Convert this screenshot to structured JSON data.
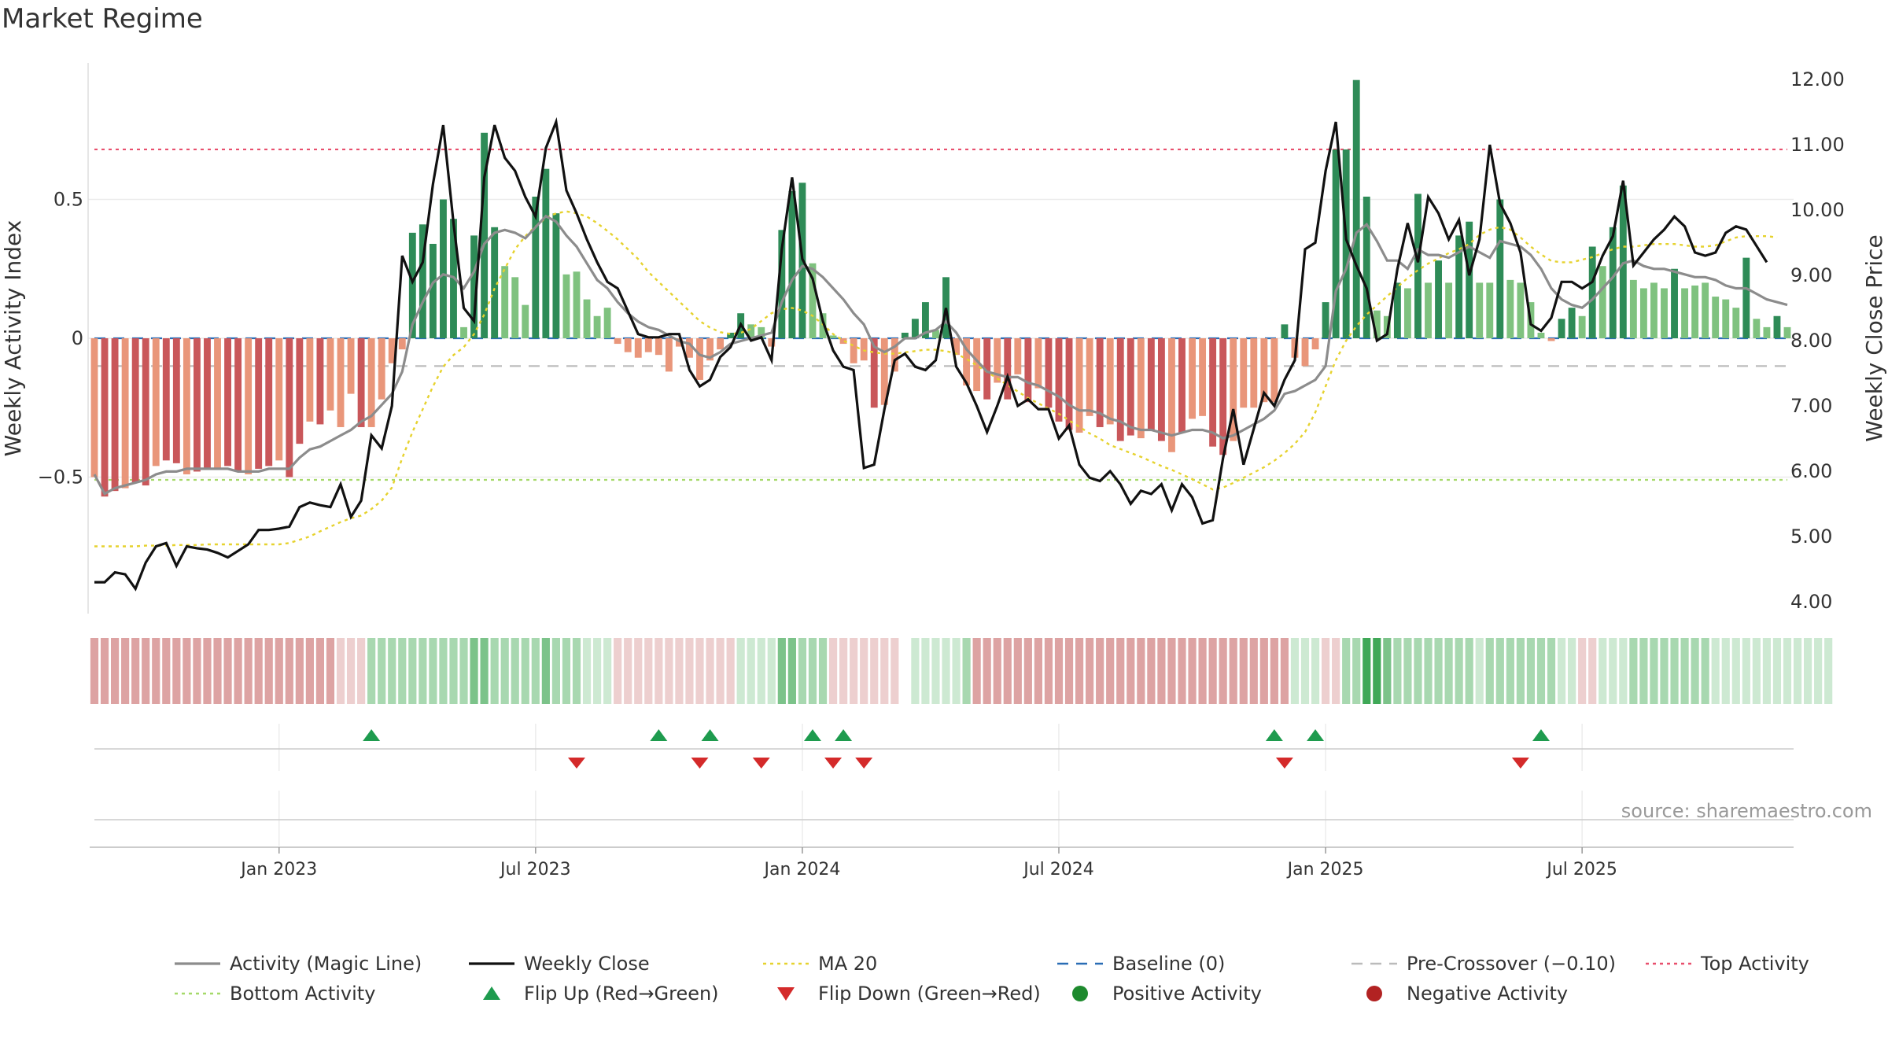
{
  "title": "Market Regime",
  "source": "source: sharemaestro.com",
  "chart_data": {
    "type": "bar",
    "left_axis": {
      "label": "Weekly Activity Index",
      "ticks": [
        0.5,
        0,
        -0.5
      ],
      "tick_labels": [
        "0.5",
        "0",
        "−0.5"
      ],
      "range": [
        -0.98,
        0.98
      ]
    },
    "right_axis": {
      "label": "Weekly Close Price",
      "ticks": [
        12,
        11,
        10,
        9,
        8,
        7,
        6,
        5,
        4
      ],
      "tick_labels": [
        "12.00",
        "11.00",
        "10.00",
        "9.00",
        "8.00",
        "7.00",
        "6.00",
        "5.00",
        "4.00"
      ],
      "range": [
        3.6,
        12.4
      ]
    },
    "x_axis": {
      "tick_labels": [
        "Jan 2023",
        "Jul 2023",
        "Jan 2024",
        "Jul 2024",
        "Jan 2025",
        "Jul 2025"
      ],
      "tick_weeks": [
        18,
        43,
        69,
        94,
        120,
        145
      ]
    },
    "reference_lines": {
      "top_activity": 0.68,
      "bottom_activity": -0.51,
      "pre_crossover": -0.1,
      "baseline": 0
    },
    "activity": [
      -0.5,
      -0.57,
      -0.55,
      -0.54,
      -0.52,
      -0.53,
      -0.46,
      -0.44,
      -0.45,
      -0.49,
      -0.48,
      -0.47,
      -0.47,
      -0.46,
      -0.48,
      -0.49,
      -0.47,
      -0.46,
      -0.44,
      -0.5,
      -0.38,
      -0.3,
      -0.31,
      -0.26,
      -0.32,
      -0.2,
      -0.32,
      -0.32,
      -0.22,
      -0.09,
      -0.04,
      0.38,
      0.41,
      0.34,
      0.5,
      0.43,
      0.04,
      0.37,
      0.74,
      0.4,
      0.26,
      0.22,
      0.12,
      0.51,
      0.61,
      0.45,
      0.23,
      0.24,
      0.14,
      0.08,
      0.11,
      -0.02,
      -0.05,
      -0.07,
      -0.05,
      -0.06,
      -0.12,
      -0.03,
      -0.07,
      -0.15,
      -0.08,
      -0.04,
      0.02,
      0.09,
      0.05,
      0.04,
      -0.03,
      0.39,
      0.53,
      0.56,
      0.27,
      0.09,
      0.01,
      -0.02,
      -0.09,
      -0.08,
      -0.25,
      -0.24,
      -0.12,
      0.02,
      0.07,
      0.13,
      0.03,
      0.22,
      -0.06,
      -0.17,
      -0.19,
      -0.22,
      -0.16,
      -0.22,
      -0.13,
      -0.23,
      -0.18,
      -0.25,
      -0.3,
      -0.33,
      -0.34,
      -0.28,
      -0.32,
      -0.31,
      -0.37,
      -0.35,
      -0.36,
      -0.33,
      -0.37,
      -0.41,
      -0.34,
      -0.29,
      -0.28,
      -0.39,
      -0.42,
      -0.37,
      -0.25,
      -0.25,
      -0.23,
      -0.23,
      0.05,
      -0.07,
      -0.1,
      -0.04,
      0.13,
      0.68,
      0.68,
      0.93,
      0.51,
      0.1,
      0.08,
      0.2,
      0.18,
      0.52,
      0.2,
      0.28,
      0.2,
      0.37,
      0.42,
      0.2,
      0.2,
      0.5,
      0.21,
      0.2,
      0.13,
      0.02,
      -0.01,
      0.07,
      0.11,
      0.08,
      0.33,
      0.26,
      0.4,
      0.55,
      0.21,
      0.18,
      0.2,
      0.18,
      0.25,
      0.18,
      0.19,
      0.2,
      0.15,
      0.14,
      0.11,
      0.29,
      0.07,
      0.04,
      0.08,
      0.04
    ],
    "magic_line": [
      -0.49,
      -0.56,
      -0.54,
      -0.53,
      -0.52,
      -0.51,
      -0.49,
      -0.48,
      -0.48,
      -0.47,
      -0.47,
      -0.47,
      -0.47,
      -0.47,
      -0.48,
      -0.48,
      -0.48,
      -0.47,
      -0.47,
      -0.47,
      -0.43,
      -0.4,
      -0.39,
      -0.37,
      -0.35,
      -0.33,
      -0.3,
      -0.28,
      -0.24,
      -0.2,
      -0.12,
      0.05,
      0.13,
      0.2,
      0.23,
      0.22,
      0.18,
      0.24,
      0.34,
      0.38,
      0.39,
      0.38,
      0.36,
      0.4,
      0.44,
      0.42,
      0.37,
      0.33,
      0.27,
      0.21,
      0.18,
      0.13,
      0.09,
      0.06,
      0.04,
      0.03,
      0.01,
      -0.01,
      -0.02,
      -0.06,
      -0.07,
      -0.05,
      -0.02,
      -0.01,
      0.0,
      0.01,
      0.02,
      0.13,
      0.21,
      0.26,
      0.25,
      0.22,
      0.18,
      0.14,
      0.09,
      0.05,
      -0.03,
      -0.05,
      -0.03,
      0.0,
      0.0,
      0.02,
      0.03,
      0.06,
      0.02,
      -0.04,
      -0.08,
      -0.12,
      -0.13,
      -0.14,
      -0.14,
      -0.16,
      -0.17,
      -0.19,
      -0.21,
      -0.24,
      -0.26,
      -0.26,
      -0.27,
      -0.29,
      -0.3,
      -0.32,
      -0.33,
      -0.33,
      -0.34,
      -0.35,
      -0.34,
      -0.33,
      -0.33,
      -0.34,
      -0.36,
      -0.35,
      -0.33,
      -0.31,
      -0.29,
      -0.26,
      -0.2,
      -0.19,
      -0.17,
      -0.15,
      -0.1,
      0.17,
      0.25,
      0.38,
      0.41,
      0.35,
      0.28,
      0.28,
      0.25,
      0.32,
      0.3,
      0.3,
      0.29,
      0.31,
      0.33,
      0.31,
      0.29,
      0.35,
      0.34,
      0.33,
      0.3,
      0.25,
      0.18,
      0.14,
      0.12,
      0.11,
      0.14,
      0.18,
      0.22,
      0.27,
      0.28,
      0.26,
      0.25,
      0.25,
      0.24,
      0.23,
      0.22,
      0.22,
      0.21,
      0.19,
      0.18,
      0.18,
      0.16,
      0.14,
      0.13,
      0.12
    ],
    "weekly_close": [
      4.3,
      4.3,
      4.45,
      4.42,
      4.2,
      4.6,
      4.85,
      4.9,
      4.55,
      4.85,
      4.82,
      4.8,
      4.75,
      4.68,
      4.78,
      4.88,
      5.1,
      5.1,
      5.12,
      5.15,
      5.45,
      5.52,
      5.48,
      5.45,
      5.8,
      5.3,
      5.55,
      6.55,
      6.35,
      7.0,
      9.3,
      8.9,
      9.2,
      10.4,
      11.3,
      9.8,
      8.5,
      8.3,
      10.5,
      11.3,
      10.8,
      10.6,
      10.2,
      9.9,
      10.95,
      11.35,
      10.3,
      9.95,
      9.55,
      9.2,
      8.9,
      8.8,
      8.45,
      8.1,
      8.05,
      8.05,
      8.1,
      8.1,
      7.55,
      7.3,
      7.4,
      7.75,
      7.9,
      8.25,
      8.0,
      8.05,
      7.7,
      9.4,
      10.5,
      9.25,
      8.95,
      8.3,
      7.85,
      7.6,
      7.55,
      6.05,
      6.1,
      6.95,
      7.7,
      7.8,
      7.6,
      7.55,
      7.7,
      8.5,
      7.6,
      7.35,
      7.0,
      6.6,
      7.0,
      7.45,
      7.0,
      7.1,
      6.95,
      6.95,
      6.5,
      6.7,
      6.1,
      5.9,
      5.85,
      6.0,
      5.8,
      5.5,
      5.7,
      5.65,
      5.8,
      5.4,
      5.8,
      5.6,
      5.2,
      5.25,
      6.2,
      6.95,
      6.1,
      6.65,
      7.2,
      7.0,
      7.4,
      7.7,
      9.4,
      9.5,
      10.6,
      11.35,
      9.55,
      9.15,
      8.8,
      8.0,
      8.1,
      9.1,
      9.8,
      9.2,
      10.2,
      9.95,
      9.55,
      9.85,
      9.0,
      9.55,
      11.0,
      10.1,
      9.8,
      9.35,
      8.25,
      8.15,
      8.35,
      8.9,
      8.9,
      8.8,
      8.9,
      9.3,
      9.6,
      10.45,
      9.15,
      9.35,
      9.55,
      9.7,
      9.9,
      9.75,
      9.35,
      9.3,
      9.35,
      9.65,
      9.75,
      9.7,
      9.45,
      9.2
    ],
    "ma20": [
      4.85,
      4.85,
      4.85,
      4.85,
      4.85,
      4.86,
      4.86,
      4.86,
      4.87,
      4.87,
      4.87,
      4.88,
      4.88,
      4.88,
      4.88,
      4.88,
      4.88,
      4.88,
      4.88,
      4.9,
      4.95,
      5.0,
      5.08,
      5.15,
      5.22,
      5.28,
      5.32,
      5.42,
      5.55,
      5.75,
      6.2,
      6.6,
      6.95,
      7.3,
      7.6,
      7.78,
      7.9,
      8.1,
      8.4,
      8.8,
      9.1,
      9.4,
      9.6,
      9.75,
      9.88,
      9.95,
      9.98,
      9.95,
      9.9,
      9.8,
      9.68,
      9.55,
      9.4,
      9.25,
      9.05,
      8.9,
      8.75,
      8.6,
      8.45,
      8.3,
      8.2,
      8.13,
      8.1,
      8.12,
      8.18,
      8.3,
      8.42,
      8.48,
      8.5,
      8.46,
      8.38,
      8.25,
      8.1,
      8.0,
      7.92,
      7.85,
      7.82,
      7.8,
      7.8,
      7.82,
      7.84,
      7.86,
      7.86,
      7.84,
      7.8,
      7.72,
      7.62,
      7.52,
      7.42,
      7.32,
      7.22,
      7.12,
      7.04,
      6.96,
      6.88,
      6.78,
      6.68,
      6.58,
      6.5,
      6.4,
      6.34,
      6.28,
      6.22,
      6.15,
      6.08,
      6.02,
      5.95,
      5.88,
      5.8,
      5.72,
      5.75,
      5.82,
      5.9,
      5.98,
      6.06,
      6.16,
      6.28,
      6.42,
      6.6,
      6.9,
      7.3,
      7.7,
      8.0,
      8.22,
      8.4,
      8.54,
      8.68,
      8.82,
      8.96,
      9.08,
      9.18,
      9.26,
      9.34,
      9.4,
      9.48,
      9.62,
      9.7,
      9.74,
      9.7,
      9.58,
      9.44,
      9.32,
      9.22,
      9.2,
      9.2,
      9.24,
      9.28,
      9.34,
      9.4,
      9.44,
      9.44,
      9.46,
      9.48,
      9.48,
      9.48,
      9.46,
      9.44,
      9.44,
      9.46,
      9.52,
      9.58,
      9.6,
      9.6,
      9.6,
      9.58
    ],
    "regime_strip": [
      -2,
      -2,
      -2,
      -2,
      -2,
      -2,
      -2,
      -2,
      -2,
      -2,
      -2,
      -2,
      -2,
      -2,
      -2,
      -2,
      -2,
      -2,
      -2,
      -2,
      -2,
      -2,
      -2,
      -2,
      -1,
      -1,
      -1,
      2,
      2,
      2,
      2,
      2,
      2,
      2,
      2,
      2,
      2,
      3,
      3,
      2,
      2,
      2,
      2,
      2,
      3,
      2,
      2,
      2,
      1,
      1,
      1,
      -1,
      -1,
      -1,
      -1,
      -1,
      -1,
      -1,
      -1,
      -1,
      -1,
      -1,
      -1,
      1,
      1,
      1,
      1,
      3,
      3,
      2,
      2,
      2,
      -1,
      -1,
      -1,
      -1,
      -1,
      -1,
      -1,
      null,
      1,
      1,
      1,
      1,
      1,
      2,
      -2,
      -2,
      -2,
      -2,
      -2,
      -2,
      -2,
      -2,
      -2,
      -2,
      -2,
      -2,
      -2,
      -2,
      -2,
      -2,
      -2,
      -2,
      -2,
      -2,
      -2,
      -2,
      -2,
      -2,
      -2,
      -2,
      -2,
      -2,
      -2,
      -2,
      -2,
      1,
      1,
      1,
      -1,
      -1,
      2,
      2,
      4,
      4,
      3,
      2,
      2,
      2,
      2,
      2,
      2,
      2,
      2,
      1,
      2,
      2,
      2,
      2,
      2,
      2,
      2,
      1,
      1,
      -1,
      -1,
      1,
      1,
      1,
      2,
      2,
      2,
      2,
      2,
      2,
      2,
      2,
      1,
      1,
      1,
      1,
      1,
      1,
      1,
      1,
      1,
      1,
      1,
      1
    ],
    "flip_up_weeks": [
      27,
      55,
      60,
      70,
      73,
      115,
      119,
      141
    ],
    "flip_down_weeks": [
      47,
      59,
      65,
      72,
      75,
      116,
      139
    ],
    "legend": [
      {
        "label": "Activity (Magic Line)",
        "style": "solid",
        "color": "#8c8c8c"
      },
      {
        "label": "Weekly Close",
        "style": "solid",
        "color": "#111111"
      },
      {
        "label": "MA 20",
        "style": "dotted",
        "color": "#e6d22e"
      },
      {
        "label": "Baseline (0)",
        "style": "dashed",
        "color": "#2a6db5"
      },
      {
        "label": "Pre-Crossover (−0.10)",
        "style": "dashed",
        "color": "#bbbbbb"
      },
      {
        "label": "Top Activity",
        "style": "dotted",
        "color": "#e8506e"
      },
      {
        "label": "Bottom Activity",
        "style": "dotted",
        "color": "#a6d96a"
      },
      {
        "label": "Flip Up (Red→Green)",
        "style": "triangle-up",
        "color": "#1e9b4e"
      },
      {
        "label": "Flip Down (Green→Red)",
        "style": "triangle-down",
        "color": "#d42a2a"
      },
      {
        "label": "Positive Activity",
        "style": "circle",
        "color": "#1e8a2e"
      },
      {
        "label": "Negative Activity",
        "style": "circle",
        "color": "#b22222"
      }
    ],
    "colors": {
      "pos_strong": "#2e8b57",
      "pos_weak": "#7fc27f",
      "neg_strong": "#c9575a",
      "neg_weak": "#e9967a",
      "strip_pos": [
        "#cde9d2",
        "#a8d8b0",
        "#7cc38a",
        "#3fa857"
      ],
      "strip_neg": [
        "#edcfcf",
        "#dda3a3"
      ]
    }
  }
}
